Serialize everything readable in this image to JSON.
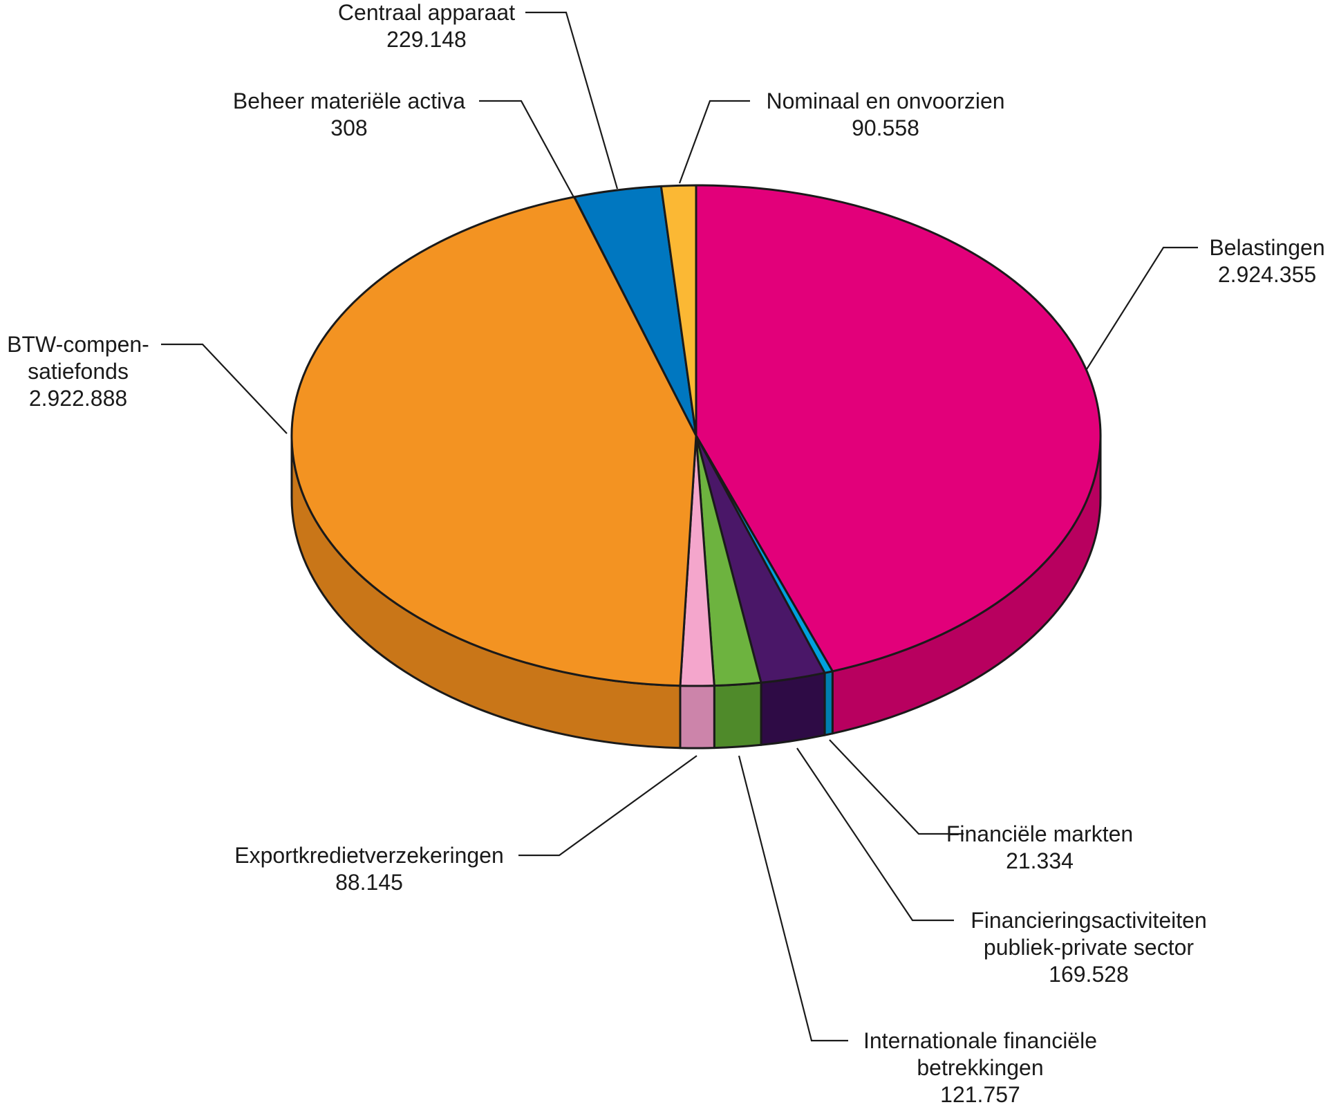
{
  "chart_data": {
    "type": "pie",
    "title": "",
    "style": "3d",
    "start": "top",
    "direction": "clockwise",
    "legend": "none",
    "slices": [
      {
        "name": "Belastingen",
        "label_lines": [
          "Belastingen"
        ],
        "value": 2924355,
        "value_label": "2.924.355",
        "color": "#e2007a",
        "side_color": "#b8005f"
      },
      {
        "name": "Financiële markten",
        "label_lines": [
          "Financiële markten"
        ],
        "value": 21334,
        "value_label": "21.334",
        "color": "#00a0dd",
        "side_color": "#007fb0"
      },
      {
        "name": "Financieringsactiviteiten publiek-private sector",
        "label_lines": [
          "Financieringsactiviteiten",
          "publiek-private sector"
        ],
        "value": 169528,
        "value_label": "169.528",
        "color": "#4a1768",
        "side_color": "#2e0b45"
      },
      {
        "name": "Internationale financiële betrekkingen",
        "label_lines": [
          "Internationale financiële",
          "betrekkingen"
        ],
        "value": 121757,
        "value_label": "121.757",
        "color": "#6db33f",
        "side_color": "#4f8a2a"
      },
      {
        "name": "Exportkredietverzekeringen",
        "label_lines": [
          "Exportkredietverzekeringen"
        ],
        "value": 88145,
        "value_label": "88.145",
        "color": "#f4a6cc",
        "side_color": "#cc84aa"
      },
      {
        "name": "BTW-compensatiefonds",
        "label_lines": [
          "BTW-compen-",
          "satiefonds"
        ],
        "value": 2922888,
        "value_label": "2.922.888",
        "color": "#f39322",
        "side_color": "#c97618"
      },
      {
        "name": "Beheer materiële activa",
        "label_lines": [
          "Beheer materiële activa"
        ],
        "value": 308,
        "value_label": "308",
        "color": "#f39322",
        "side_color": "#c97618"
      },
      {
        "name": "Centraal apparaat",
        "label_lines": [
          "Centraal apparaat"
        ],
        "value": 229148,
        "value_label": "229.148",
        "color": "#0077c0",
        "side_color": "#005a93"
      },
      {
        "name": "Nominaal en onvoorzien",
        "label_lines": [
          "Nominaal en onvoorzien"
        ],
        "value": 90558,
        "value_label": "90.558",
        "color": "#fbb834",
        "side_color": "#d4962a"
      }
    ]
  }
}
